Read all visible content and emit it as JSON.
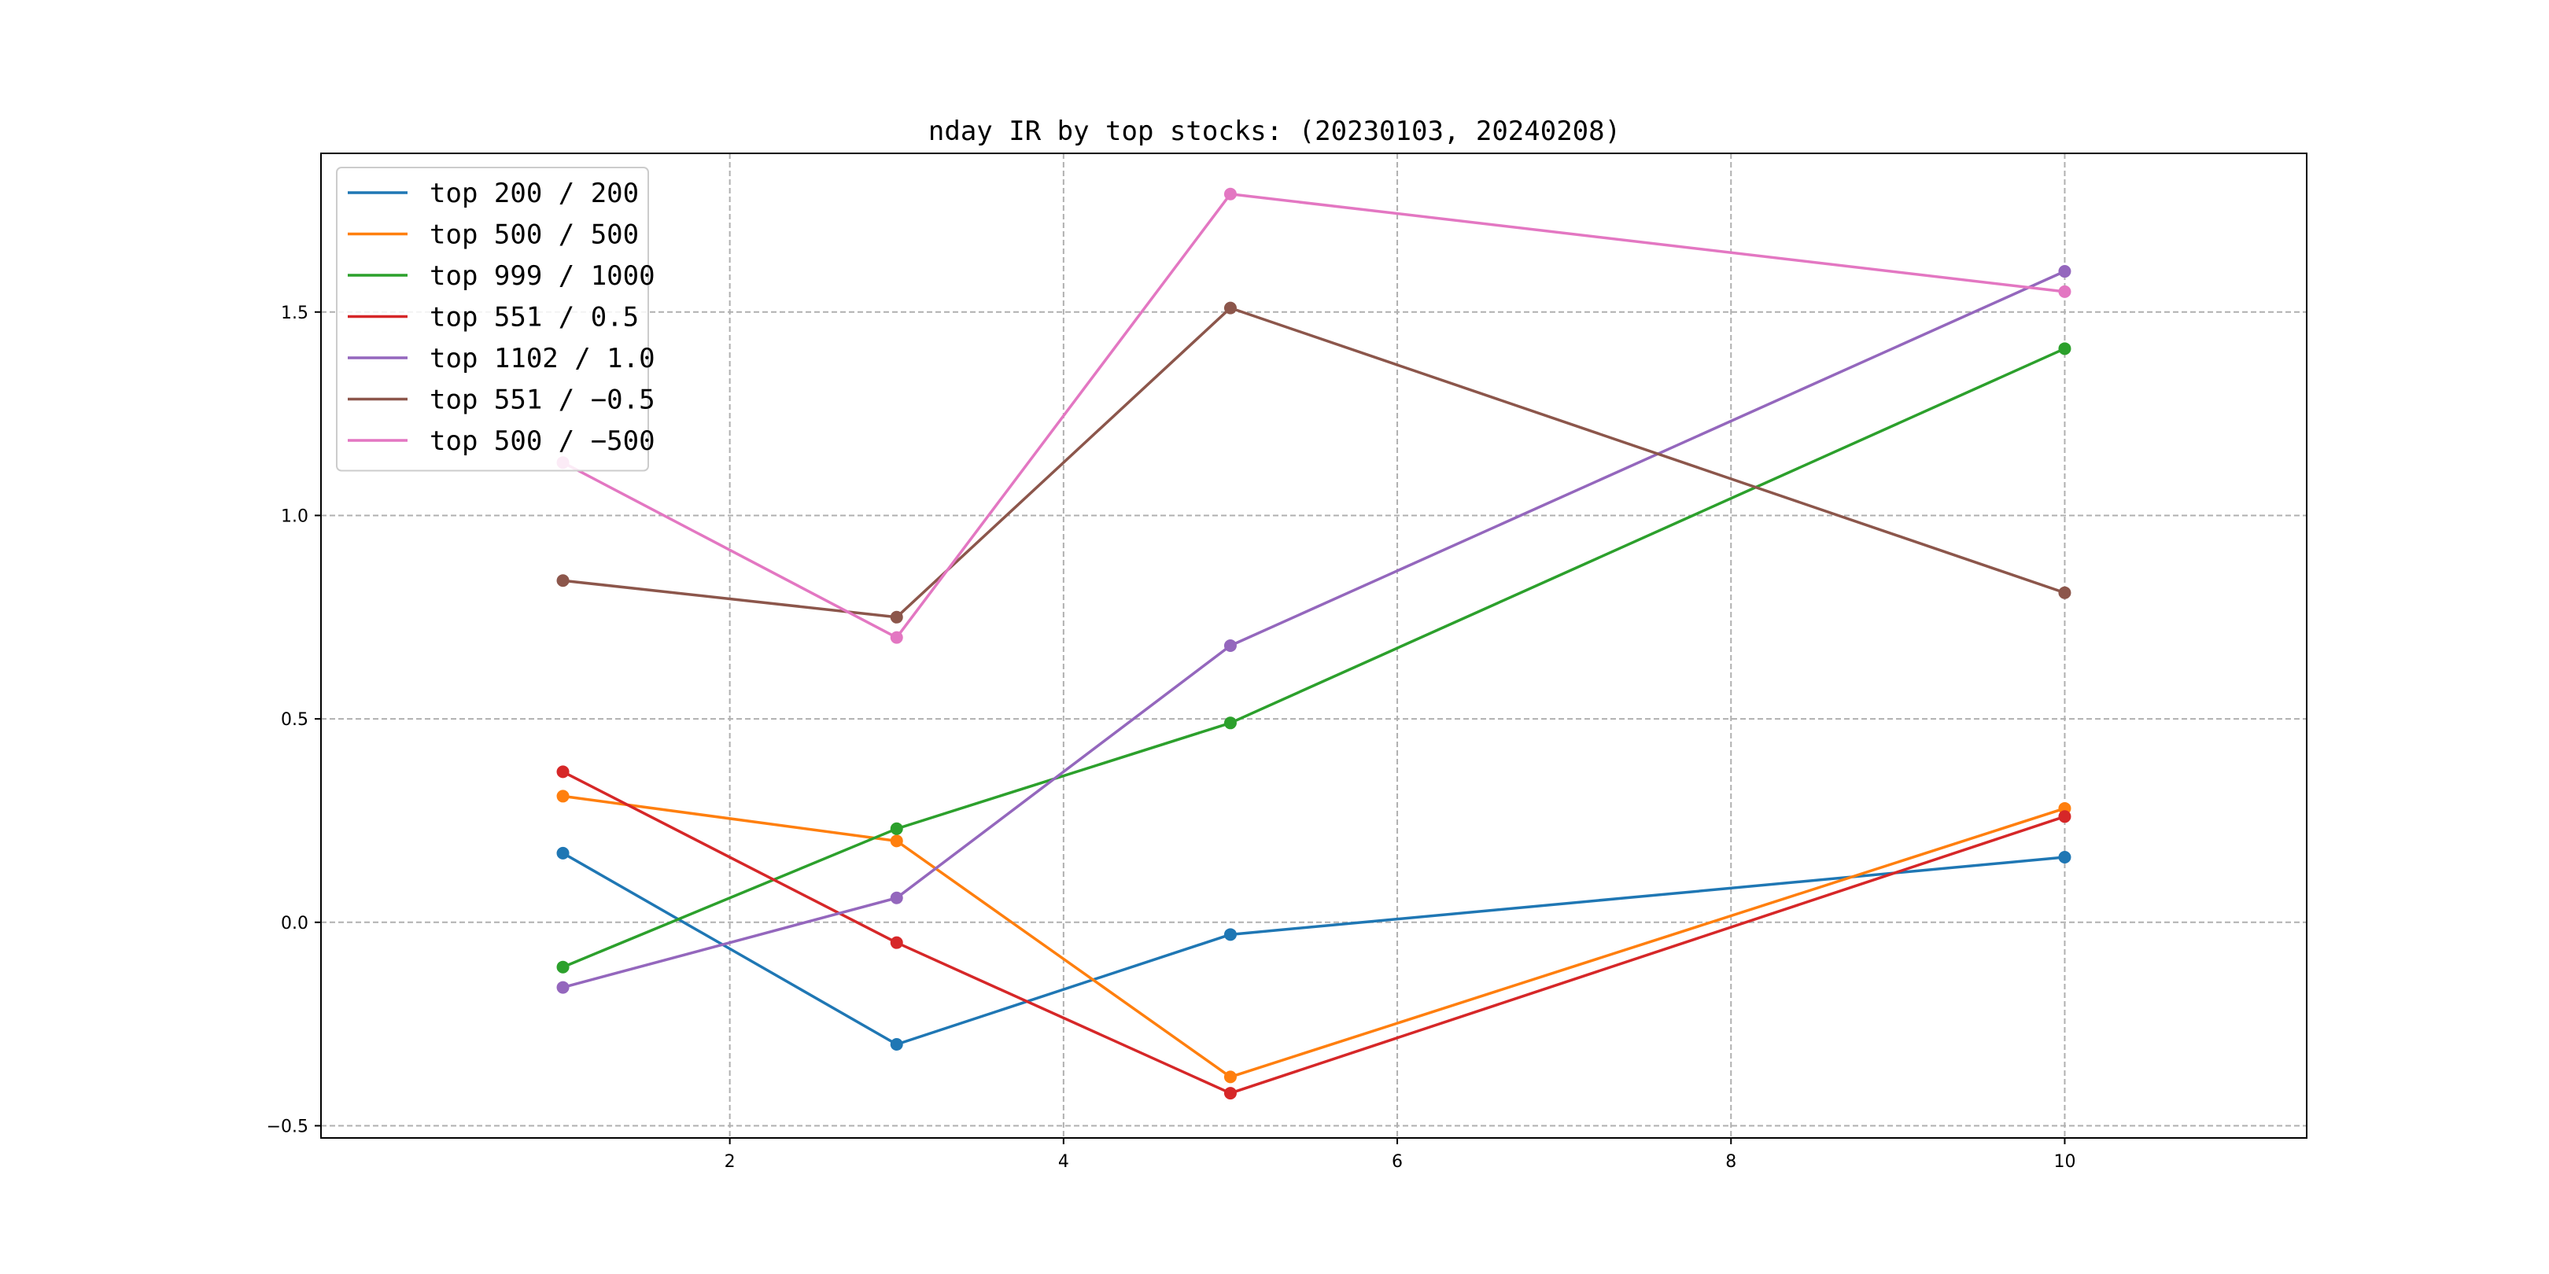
{
  "chart_data": {
    "type": "line",
    "title": "nday IR by top stocks: (20230103, 20240208)",
    "xlabel": "",
    "ylabel": "",
    "x": [
      1,
      3,
      5,
      10
    ],
    "xlim": [
      -0.45,
      11.45
    ],
    "ylim": [
      -0.53,
      1.89
    ],
    "xticks": [
      2,
      4,
      6,
      8,
      10
    ],
    "yticks": [
      -0.5,
      0.0,
      0.5,
      1.0,
      1.5
    ],
    "xtick_labels": [
      "2",
      "4",
      "6",
      "8",
      "10"
    ],
    "ytick_labels": [
      "−0.5",
      "0.0",
      "0.5",
      "1.0",
      "1.5"
    ],
    "grid": true,
    "legend_position": "upper-left",
    "series": [
      {
        "name": "top 200 / 200",
        "color": "#1f77b4",
        "values": [
          0.17,
          -0.3,
          -0.03,
          0.16
        ]
      },
      {
        "name": "top 500 / 500",
        "color": "#ff7f0e",
        "values": [
          0.31,
          0.2,
          -0.38,
          0.28
        ]
      },
      {
        "name": "top 999 / 1000",
        "color": "#2ca02c",
        "values": [
          -0.11,
          0.23,
          0.49,
          1.41
        ]
      },
      {
        "name": "top 551 / 0.5",
        "color": "#d62728",
        "values": [
          0.37,
          -0.05,
          -0.42,
          0.26
        ]
      },
      {
        "name": "top 1102 / 1.0",
        "color": "#9467bd",
        "values": [
          -0.16,
          0.06,
          0.68,
          1.6
        ]
      },
      {
        "name": "top 551 / −0.5",
        "color": "#8c564b",
        "values": [
          0.84,
          0.75,
          1.51,
          0.81
        ]
      },
      {
        "name": "top 500 / −500",
        "color": "#e377c2",
        "values": [
          1.13,
          0.7,
          1.79,
          1.55
        ]
      }
    ]
  }
}
